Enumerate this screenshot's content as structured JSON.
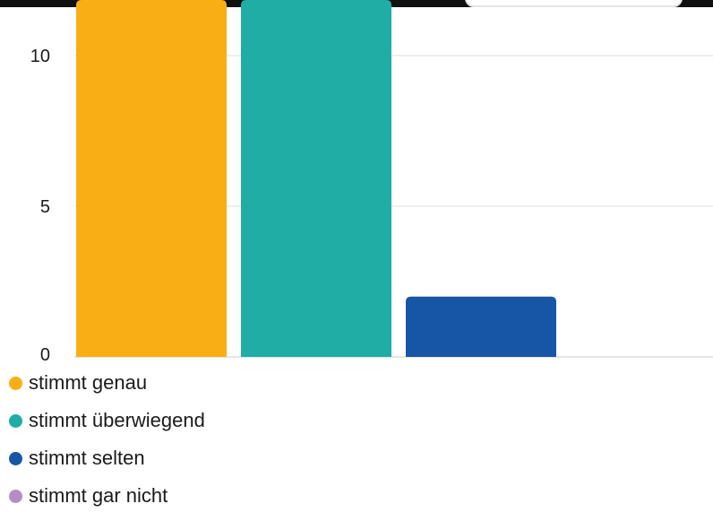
{
  "chart_data": {
    "type": "bar",
    "categories": [
      "stimmt genau",
      "stimmt überwiegend",
      "stimmt selten",
      "stimmt gar nicht"
    ],
    "values": [
      12,
      12,
      2,
      0
    ],
    "colors": [
      "#F9AE16",
      "#1FADA6",
      "#1756A6",
      "#B38CC5"
    ],
    "yticks": [
      0,
      5,
      10
    ],
    "ylim": [
      0,
      12
    ],
    "grid": true,
    "legend_position": "bottom-left"
  },
  "legend": {
    "items": [
      {
        "label": "stimmt genau",
        "color": "#F9AE16"
      },
      {
        "label": "stimmt überwiegend",
        "color": "#1FADA6"
      },
      {
        "label": "stimmt selten",
        "color": "#1756A6"
      },
      {
        "label": "stimmt gar nicht",
        "color": "#B38CC5"
      }
    ]
  }
}
